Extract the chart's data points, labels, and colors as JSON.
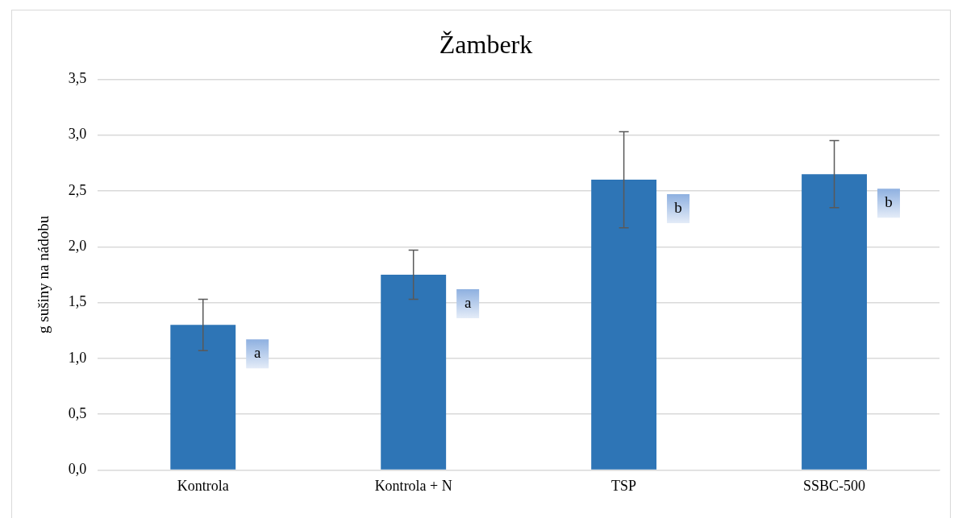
{
  "chart_data": {
    "type": "bar",
    "title": "Žamberk",
    "ylabel": "g sušiny na nádobu",
    "categories": [
      "Kontrola",
      "Kontrola + N",
      "TSP",
      "SSBC-500"
    ],
    "values": [
      1.3,
      1.75,
      2.6,
      2.65
    ],
    "errors": [
      0.23,
      0.22,
      0.43,
      0.3
    ],
    "color": "#2e75b6",
    "ylim": [
      0,
      3.5
    ],
    "yticks": [
      {
        "value": 0,
        "label": "0,0"
      },
      {
        "value": 0.5,
        "label": "0,5"
      },
      {
        "value": 1,
        "label": "1,0"
      },
      {
        "value": 1.5,
        "label": "1,5"
      },
      {
        "value": 2,
        "label": "2,0"
      },
      {
        "value": 2.5,
        "label": "2,5"
      },
      {
        "value": 3,
        "label": "3,0"
      },
      {
        "value": 3.5,
        "label": "3,5"
      }
    ],
    "grid": "y",
    "annotations": [
      "a",
      "a",
      "b",
      "b"
    ]
  }
}
